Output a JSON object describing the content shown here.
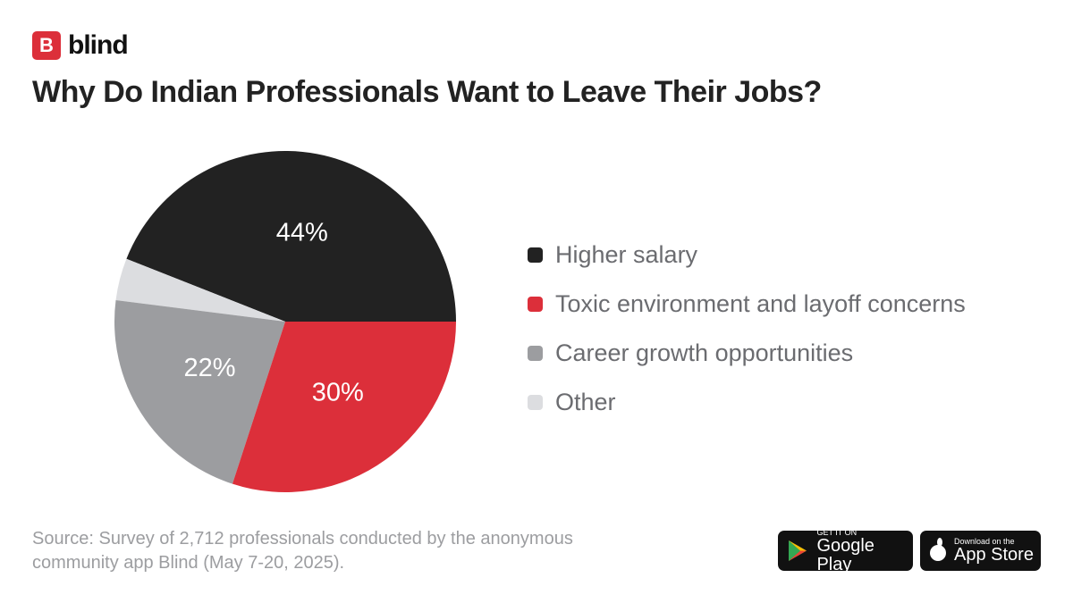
{
  "brand": "blind",
  "chart_data": {
    "type": "pie",
    "title": "Why Do Indian Professionals Want to Leave Their Jobs?",
    "categories": [
      "Higher salary",
      "Toxic environment and layoff concerns",
      "Career growth opportunities",
      "Other"
    ],
    "values": [
      44,
      30,
      22,
      4
    ],
    "value_labels": [
      "44%",
      "30%",
      "22%",
      null
    ],
    "colors": [
      "#222222",
      "#dc2f3a",
      "#9c9da0",
      "#dcdde0"
    ],
    "legend": "right"
  },
  "source": "Source: Survey of 2,712 professionals conducted by the anonymous community app Blind (May 7-20, 2025).",
  "badges": {
    "google_small": "GET IT ON",
    "google_big": "Google Play",
    "apple_small": "Download on the",
    "apple_big": "App Store"
  }
}
